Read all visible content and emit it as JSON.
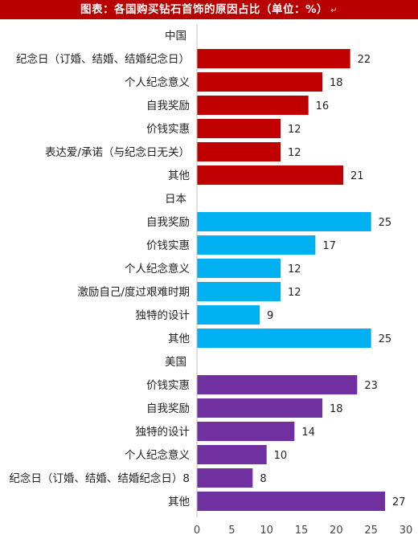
{
  "title": "图表：各国购买钻石首饰的原因占比（单位：%）",
  "title_mark": "↵",
  "colors": {
    "title_bg": "#b80000",
    "china": "#c00000",
    "japan": "#00b0f0",
    "usa": "#7030a0"
  },
  "chart_data": {
    "type": "bar",
    "orientation": "horizontal",
    "xlim": [
      0,
      30
    ],
    "xticks": [
      0,
      5,
      10,
      15,
      20,
      25,
      30
    ],
    "grid": false,
    "groups": [
      {
        "name": "中国",
        "color": "#c00000",
        "items": [
          {
            "label": "纪念日（订婚、结婚、结婚纪念日）",
            "value": 22
          },
          {
            "label": "个人纪念意义",
            "value": 18
          },
          {
            "label": "自我奖励",
            "value": 16
          },
          {
            "label": "价钱实惠",
            "value": 12
          },
          {
            "label": "表达爱/承诺（与纪念日无关）",
            "value": 12
          },
          {
            "label": "其他",
            "value": 21
          }
        ]
      },
      {
        "name": "日本",
        "color": "#00b0f0",
        "items": [
          {
            "label": "自我奖励",
            "value": 25
          },
          {
            "label": "价钱实惠",
            "value": 17
          },
          {
            "label": "个人纪念意义",
            "value": 12
          },
          {
            "label": "激励自己/度过艰难时期",
            "value": 12
          },
          {
            "label": "独特的设计",
            "value": 9
          },
          {
            "label": "其他",
            "value": 25
          }
        ]
      },
      {
        "name": "美国",
        "color": "#7030a0",
        "items": [
          {
            "label": "价钱实惠",
            "value": 23
          },
          {
            "label": "自我奖励",
            "value": 18
          },
          {
            "label": "独特的设计",
            "value": 14
          },
          {
            "label": "个人纪念意义",
            "value": 10
          },
          {
            "label": "纪念日（订婚、结婚、结婚纪念日）8",
            "value": 8
          },
          {
            "label": "其他",
            "value": 27
          }
        ]
      }
    ]
  }
}
